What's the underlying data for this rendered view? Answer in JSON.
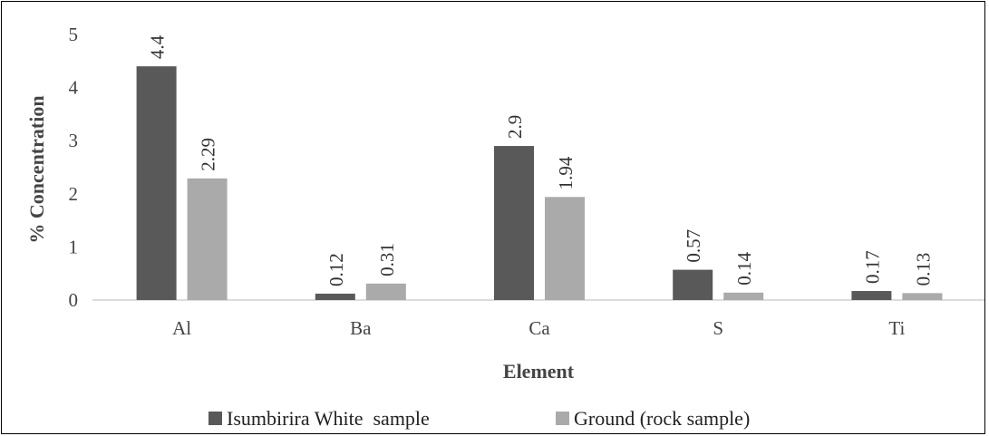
{
  "chart_data": {
    "type": "bar",
    "categories": [
      "Al",
      "Ba",
      "Ca",
      "S",
      "Ti"
    ],
    "series": [
      {
        "name": "Isumbirira White  sample",
        "values": [
          4.4,
          0.12,
          2.9,
          0.57,
          0.17
        ],
        "labels": [
          "4.4",
          "0.12",
          "2.9",
          "0.57",
          "0.17"
        ],
        "color": "#595959"
      },
      {
        "name": "Ground (rock sample)",
        "values": [
          2.29,
          0.31,
          1.94,
          0.14,
          0.13
        ],
        "labels": [
          "2.29",
          "0.31",
          "1.94",
          "0.14",
          "0.13"
        ],
        "color": "#aaaaaa"
      }
    ],
    "xlabel": "Element",
    "ylabel": "% Concentration",
    "ylim": [
      0,
      5
    ],
    "yticks": [
      0,
      1,
      2,
      3,
      4,
      5
    ],
    "ytick_labels": [
      "0",
      "1",
      "2",
      "3",
      "4",
      "5"
    ],
    "grid": false,
    "legend_position": "bottom",
    "data_label_orientation": "vertical"
  }
}
